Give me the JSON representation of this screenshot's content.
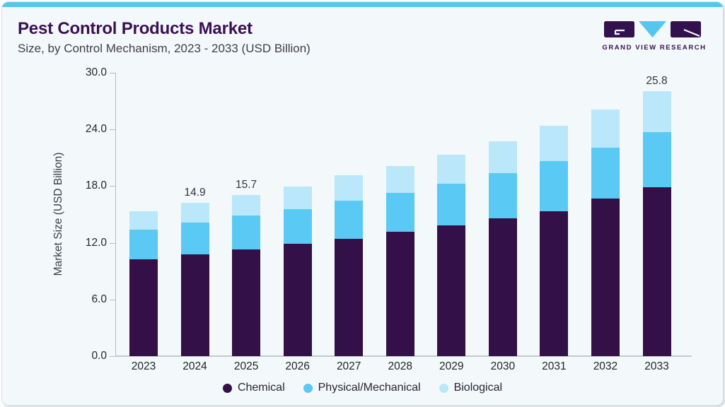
{
  "header": {
    "title": "Pest Control Products Market",
    "subtitle": "Size, by Control Mechanism, 2023 - 2033 (USD Billion)",
    "logo_text": "GRAND VIEW RESEARCH"
  },
  "colors": {
    "accent_strip": "#55c6f0",
    "card_background": "#f3f8fb",
    "title_purple": "#3a1053",
    "axis_gray": "#b4bcc3",
    "chemical": "#331048",
    "physical_mechanical": "#5ac9f4",
    "biological": "#bae7fa"
  },
  "chart_data": {
    "type": "bar",
    "stacked": true,
    "title": "Pest Control Products Market",
    "subtitle": "Size, by Control Mechanism, 2023 - 2033 (USD Billion)",
    "xlabel": "",
    "ylabel": "Market Size (USD Billion)",
    "ylim": [
      0,
      30
    ],
    "ytick_labels": [
      "0.0",
      "6.0",
      "12.0",
      "18.0",
      "24.0",
      "30.0"
    ],
    "grid": false,
    "legend_position": "bottom",
    "categories": [
      "2023",
      "2024",
      "2025",
      "2026",
      "2027",
      "2028",
      "2029",
      "2030",
      "2031",
      "2032",
      "2033"
    ],
    "series": [
      {
        "name": "Chemical",
        "color": "#331048",
        "values": [
          9.4,
          9.9,
          10.4,
          10.9,
          11.4,
          12.1,
          12.7,
          13.4,
          14.1,
          15.3,
          16.4
        ]
      },
      {
        "name": "Physical/Mechanical",
        "color": "#5ac9f4",
        "values": [
          2.9,
          3.1,
          3.3,
          3.4,
          3.7,
          3.8,
          4.1,
          4.4,
          4.9,
          5.0,
          5.4
        ]
      },
      {
        "name": "Biological",
        "color": "#bae7fa",
        "values": [
          1.8,
          1.9,
          2.0,
          2.2,
          2.5,
          2.6,
          2.8,
          3.1,
          3.4,
          3.7,
          4.0
        ]
      }
    ],
    "totals": [
      14.1,
      14.9,
      15.7,
      16.5,
      17.6,
      18.5,
      19.6,
      20.9,
      22.4,
      24.0,
      25.8
    ],
    "bar_labels": {
      "2024": "14.9",
      "2025": "15.7",
      "2033": "25.8"
    }
  }
}
